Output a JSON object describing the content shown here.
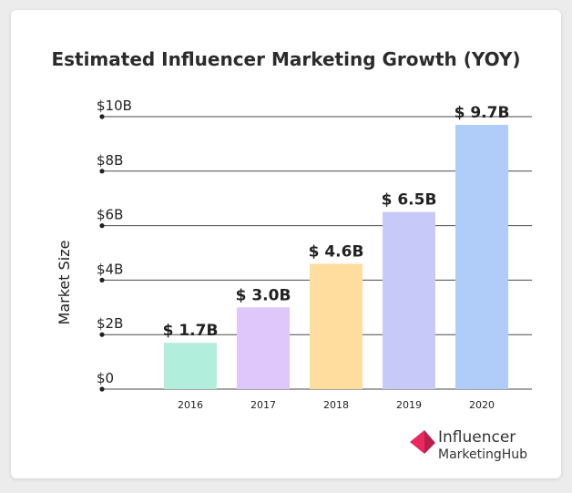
{
  "chart_data": {
    "type": "bar",
    "title": "Estimated Influencer Marketing Growth (YOY)",
    "xlabel": "",
    "ylabel": "Market Size",
    "categories": [
      "2016",
      "2017",
      "2018",
      "2019",
      "2020"
    ],
    "values": [
      1.7,
      3.0,
      4.6,
      6.5,
      9.7
    ],
    "data_labels": [
      "$ 1.7B",
      "$ 3.0B",
      "$ 4.6B",
      "$ 6.5B",
      "$ 9.7B"
    ],
    "bar_colors": [
      "#b2eedc",
      "#e0c7fb",
      "#fedd9f",
      "#c7caf9",
      "#b0cdfa"
    ],
    "ylim": [
      0,
      10
    ],
    "yticks": [
      0,
      2,
      4,
      6,
      8,
      10
    ],
    "ytick_labels": [
      "$0",
      "$2B",
      "$4B",
      "$6B",
      "$8B",
      "$10B"
    ],
    "grid": true
  },
  "logo": {
    "line1": "Influencer",
    "line2": "MarketingHub",
    "color": "#e8285f"
  }
}
